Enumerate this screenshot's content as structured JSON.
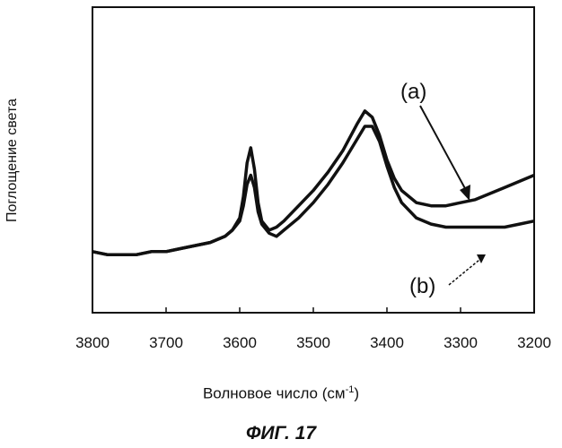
{
  "chart_data": {
    "type": "line",
    "title": "",
    "xlabel": "Волновое число (см",
    "xlabel_sup": "-1",
    "xlabel_close": ")",
    "ylabel": "Поглощение света",
    "xlim": [
      3800,
      3200
    ],
    "x_reversed": true,
    "ylim": [
      0,
      1
    ],
    "y_ticks_labeled": false,
    "x_ticks": [
      3800,
      3700,
      3600,
      3500,
      3400,
      3300,
      3200
    ],
    "x_tick_labels": [
      "3800",
      "3700",
      "3600",
      "3500",
      "3400",
      "3300",
      "3200"
    ],
    "series": [
      {
        "name": "(a)",
        "color": "#111111",
        "x": [
          3800,
          3780,
          3760,
          3740,
          3720,
          3700,
          3680,
          3660,
          3640,
          3620,
          3610,
          3600,
          3595,
          3590,
          3585,
          3580,
          3575,
          3570,
          3560,
          3550,
          3540,
          3520,
          3500,
          3480,
          3460,
          3440,
          3430,
          3420,
          3410,
          3400,
          3390,
          3380,
          3360,
          3340,
          3320,
          3300,
          3280,
          3260,
          3240,
          3220,
          3200
        ],
        "y": [
          0.2,
          0.19,
          0.19,
          0.19,
          0.2,
          0.2,
          0.21,
          0.22,
          0.23,
          0.25,
          0.27,
          0.31,
          0.38,
          0.49,
          0.54,
          0.47,
          0.36,
          0.3,
          0.27,
          0.28,
          0.3,
          0.35,
          0.4,
          0.46,
          0.53,
          0.62,
          0.66,
          0.64,
          0.58,
          0.5,
          0.44,
          0.4,
          0.36,
          0.35,
          0.35,
          0.36,
          0.37,
          0.39,
          0.41,
          0.43,
          0.45
        ]
      },
      {
        "name": "(b)",
        "color": "#111111",
        "x": [
          3800,
          3780,
          3760,
          3740,
          3720,
          3700,
          3680,
          3660,
          3640,
          3620,
          3610,
          3600,
          3595,
          3590,
          3585,
          3580,
          3575,
          3570,
          3560,
          3550,
          3540,
          3520,
          3500,
          3480,
          3460,
          3440,
          3430,
          3420,
          3410,
          3400,
          3390,
          3380,
          3360,
          3340,
          3320,
          3300,
          3280,
          3260,
          3240,
          3220,
          3200
        ],
        "y": [
          0.2,
          0.19,
          0.19,
          0.19,
          0.2,
          0.2,
          0.21,
          0.22,
          0.23,
          0.25,
          0.27,
          0.3,
          0.35,
          0.42,
          0.45,
          0.41,
          0.33,
          0.29,
          0.26,
          0.25,
          0.27,
          0.31,
          0.36,
          0.42,
          0.49,
          0.57,
          0.61,
          0.61,
          0.56,
          0.48,
          0.41,
          0.36,
          0.31,
          0.29,
          0.28,
          0.28,
          0.28,
          0.28,
          0.28,
          0.29,
          0.3
        ]
      }
    ],
    "annotations": [
      "(a)",
      "(b)"
    ],
    "grid": false,
    "legend": "none"
  },
  "caption": "ФИГ. 17"
}
